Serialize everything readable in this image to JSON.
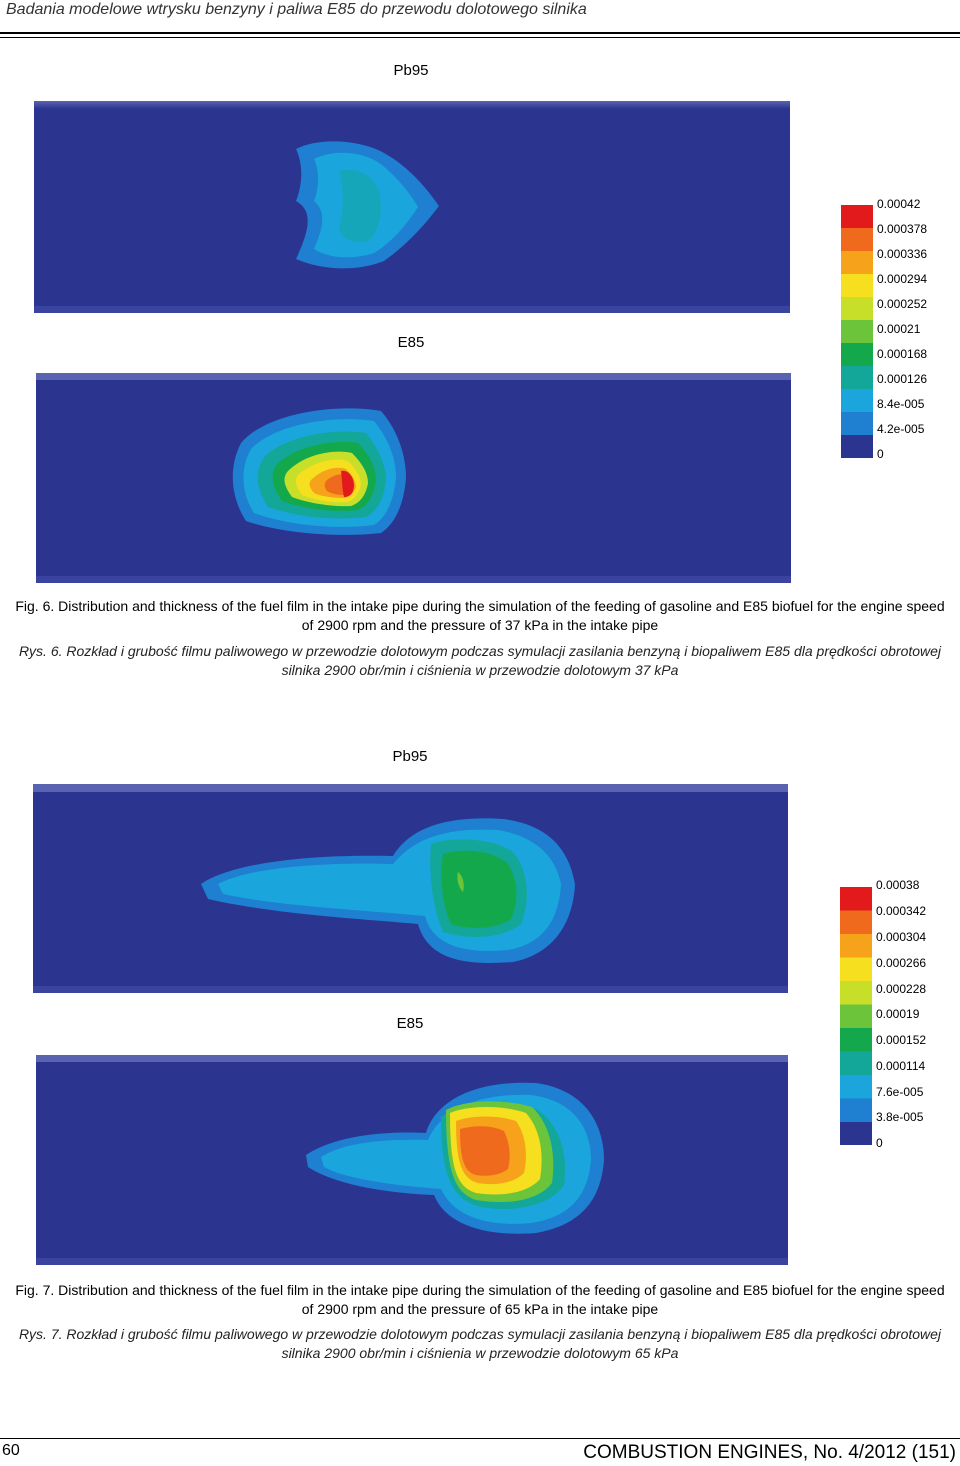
{
  "header": {
    "running_title": "Badania modelowe wtrysku benzyny i paliwa E85 do przewodu dolotowego silnika"
  },
  "figure6": {
    "panel_top_label": "Pb95",
    "panel_bottom_label": "E85",
    "legend": [
      "0.00042",
      "0.000378",
      "0.000336",
      "0.000294",
      "0.000252",
      "0.00021",
      "0.000168",
      "0.000126",
      "8.4e-005",
      "4.2e-005",
      "0"
    ],
    "caption_en": "Fig. 6. Distribution and thickness of the fuel film in the intake pipe during the simulation of the feeding of gasoline and E85 biofuel for the engine speed of 2900 rpm and the pressure of 37 kPa in the intake pipe",
    "caption_pl": "Rys. 6. Rozkład i grubość filmu paliwowego w przewodzie dolotowym podczas symulacji zasilania benzyną i biopaliwem E85 dla prędkości obrotowej silnika 2900 obr/min i ciśnienia w przewodzie dolotowym 37 kPa"
  },
  "figure7": {
    "panel_top_label": "Pb95",
    "panel_bottom_label": "E85",
    "legend": [
      "0.00038",
      "0.000342",
      "0.000304",
      "0.000266",
      "0.000228",
      "0.00019",
      "0.000152",
      "0.000114",
      "7.6e-005",
      "3.8e-005",
      "0"
    ],
    "caption_en": "Fig. 7. Distribution and thickness of the fuel film in the intake pipe during the simulation of the feeding of gasoline and E85 biofuel for the engine speed of 2900 rpm and the pressure of 65 kPa in the intake pipe",
    "caption_pl": "Rys. 7. Rozkład i grubość filmu paliwowego w przewodzie dolotowym podczas symulacji zasilania benzyną i biopaliwem E85 dla prędkości obrotowej silnika 2900 obr/min i ciśnienia w przewodzie dolotowym 65 kPa"
  },
  "colors": {
    "background_blue": "#2b3590",
    "scale": [
      "#e31a1c",
      "#f06a1e",
      "#f7a21b",
      "#f5df1e",
      "#c8df2a",
      "#6cc43b",
      "#14a84c",
      "#13a79a",
      "#1aa6dd",
      "#1f7fd0",
      "#2b3590"
    ]
  },
  "footer": {
    "page_number": "60",
    "journal": "COMBUSTION ENGINES, No. 4/2012 (151)"
  }
}
